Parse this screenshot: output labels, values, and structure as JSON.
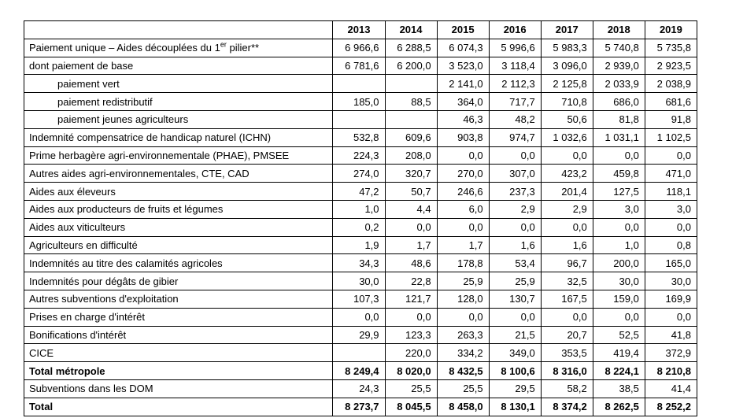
{
  "colors": {
    "background": "#ffffff",
    "text": "#000000",
    "border": "#000000"
  },
  "table": {
    "years": [
      "2013",
      "2014",
      "2015",
      "2016",
      "2017",
      "2018",
      "2019"
    ],
    "rows": [
      {
        "label": "Paiement unique – Aides découplées du 1{sup:er} pilier**",
        "indent": false,
        "bold": false,
        "values": [
          "6 966,6",
          "6 288,5",
          "6 074,3",
          "5 996,6",
          "5 983,3",
          "5 740,8",
          "5 735,8"
        ]
      },
      {
        "label": "dont paiement de base",
        "indent": false,
        "bold": false,
        "values": [
          "6 781,6",
          "6 200,0",
          "3 523,0",
          "3 118,4",
          "3 096,0",
          "2 939,0",
          "2 923,5"
        ]
      },
      {
        "label": "paiement vert",
        "indent": true,
        "bold": false,
        "values": [
          "",
          "",
          "2 141,0",
          "2 112,3",
          "2 125,8",
          "2 033,9",
          "2 038,9"
        ]
      },
      {
        "label": "paiement redistributif",
        "indent": true,
        "bold": false,
        "values": [
          "185,0",
          "88,5",
          "364,0",
          "717,7",
          "710,8",
          "686,0",
          "681,6"
        ]
      },
      {
        "label": "paiement jeunes agriculteurs",
        "indent": true,
        "bold": false,
        "values": [
          "",
          "",
          "46,3",
          "48,2",
          "50,6",
          "81,8",
          "91,8"
        ]
      },
      {
        "label": "Indemnité compensatrice de handicap naturel (ICHN)",
        "indent": false,
        "bold": false,
        "values": [
          "532,8",
          "609,6",
          "903,8",
          "974,7",
          "1 032,6",
          "1 031,1",
          "1 102,5"
        ]
      },
      {
        "label": "Prime herbagère agri-environnementale (PHAE), PMSEE",
        "indent": false,
        "bold": false,
        "values": [
          "224,3",
          "208,0",
          "0,0",
          "0,0",
          "0,0",
          "0,0",
          "0,0"
        ]
      },
      {
        "label": "Autres aides agri-environnementales, CTE, CAD",
        "indent": false,
        "bold": false,
        "values": [
          "274,0",
          "320,7",
          "270,0",
          "307,0",
          "423,2",
          "459,8",
          "471,0"
        ]
      },
      {
        "label": "Aides aux éleveurs",
        "indent": false,
        "bold": false,
        "values": [
          "47,2",
          "50,7",
          "246,6",
          "237,3",
          "201,4",
          "127,5",
          "118,1"
        ]
      },
      {
        "label": "Aides aux producteurs de fruits et légumes",
        "indent": false,
        "bold": false,
        "values": [
          "1,0",
          "4,4",
          "6,0",
          "2,9",
          "2,9",
          "3,0",
          "3,0"
        ]
      },
      {
        "label": "Aides aux viticulteurs",
        "indent": false,
        "bold": false,
        "values": [
          "0,2",
          "0,0",
          "0,0",
          "0,0",
          "0,0",
          "0,0",
          "0,0"
        ]
      },
      {
        "label": "Agriculteurs en difficulté",
        "indent": false,
        "bold": false,
        "values": [
          "1,9",
          "1,7",
          "1,7",
          "1,6",
          "1,6",
          "1,0",
          "0,8"
        ]
      },
      {
        "label": "Indemnités au titre des calamités agricoles",
        "indent": false,
        "bold": false,
        "values": [
          "34,3",
          "48,6",
          "178,8",
          "53,4",
          "96,7",
          "200,0",
          "165,0"
        ]
      },
      {
        "label": "Indemnités pour dégâts de gibier",
        "indent": false,
        "bold": false,
        "values": [
          "30,0",
          "22,8",
          "25,9",
          "25,9",
          "32,5",
          "30,0",
          "30,0"
        ]
      },
      {
        "label": "Autres subventions d'exploitation",
        "indent": false,
        "bold": false,
        "values": [
          "107,3",
          "121,7",
          "128,0",
          "130,7",
          "167,5",
          "159,0",
          "169,9"
        ]
      },
      {
        "label": "Prises en charge d'intérêt",
        "indent": false,
        "bold": false,
        "values": [
          "0,0",
          "0,0",
          "0,0",
          "0,0",
          "0,0",
          "0,0",
          "0,0"
        ]
      },
      {
        "label": "Bonifications d'intérêt",
        "indent": false,
        "bold": false,
        "values": [
          "29,9",
          "123,3",
          "263,3",
          "21,5",
          "20,7",
          "52,5",
          "41,8"
        ]
      },
      {
        "label": "CICE",
        "indent": false,
        "bold": false,
        "values": [
          "",
          "220,0",
          "334,2",
          "349,0",
          "353,5",
          "419,4",
          "372,9"
        ]
      },
      {
        "label": "Total métropole",
        "indent": false,
        "bold": true,
        "values": [
          "8 249,4",
          "8 020,0",
          "8 432,5",
          "8 100,6",
          "8 316,0",
          "8 224,1",
          "8 210,8"
        ]
      },
      {
        "label": "Subventions dans les DOM",
        "indent": false,
        "bold": false,
        "values": [
          "24,3",
          "25,5",
          "25,5",
          "29,5",
          "58,2",
          "38,5",
          "41,4"
        ]
      },
      {
        "label": "Total",
        "indent": false,
        "bold": true,
        "values": [
          "8 273,7",
          "8 045,5",
          "8 458,0",
          "8 130,1",
          "8 374,2",
          "8 262,5",
          "8 252,2"
        ]
      }
    ]
  }
}
